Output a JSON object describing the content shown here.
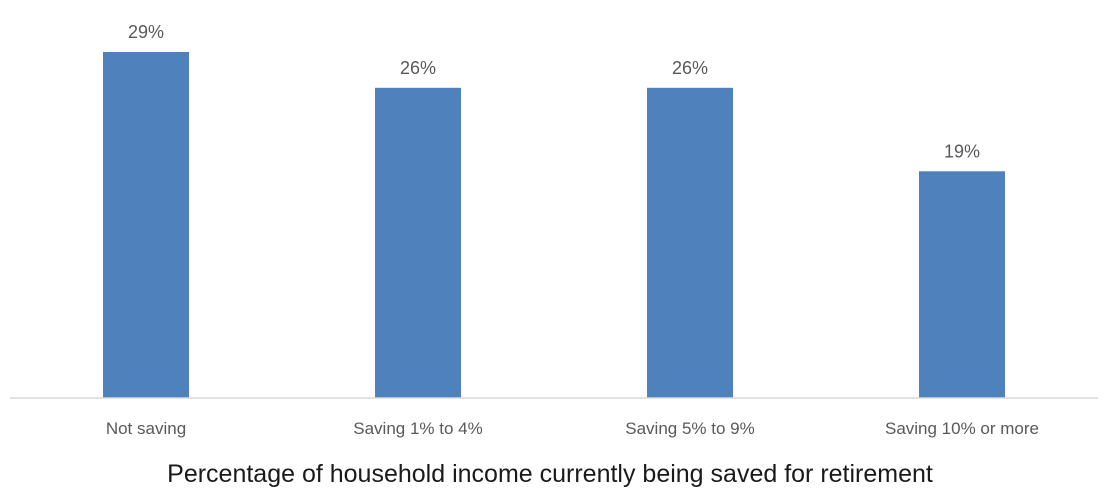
{
  "chart_data": {
    "type": "bar",
    "title": "",
    "xlabel": "Percentage of household income currently being saved for retirement",
    "ylabel": "",
    "categories": [
      "Not saving",
      "Saving 1% to 4%",
      "Saving 5% to 9%",
      "Saving 10% or more"
    ],
    "values": [
      29,
      26,
      26,
      19
    ],
    "data_labels": [
      "29%",
      "26%",
      "26%",
      "19%"
    ],
    "ylim": [
      0,
      29
    ],
    "grid": false,
    "legend": "none",
    "bar_color": "#4F81BD",
    "axis_color": "#D9D9D9",
    "label_color": "#595959"
  }
}
